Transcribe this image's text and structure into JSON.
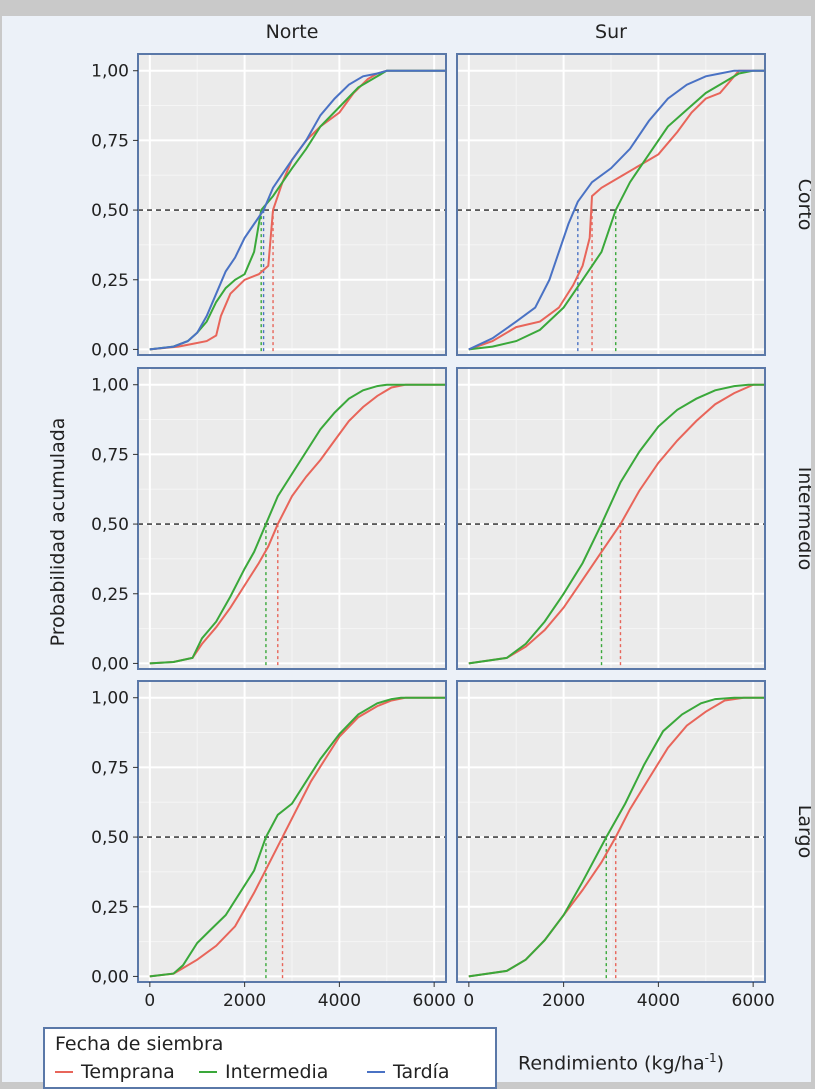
{
  "chart_data": {
    "type": "line",
    "ylabel": "Probabilidad acumulada",
    "xlabel": "Rendimiento (kg/ha",
    "xlabel_sup": "-1",
    "xlabel_close": ")",
    "x_ticks": [
      0,
      2000,
      4000,
      6000
    ],
    "y_ticks": [
      0,
      0.25,
      0.5,
      0.75,
      1
    ],
    "y_tick_labels": [
      "0,00",
      "0,25",
      "0,50",
      "0,75",
      "1,00"
    ],
    "xlim": [
      -250,
      6250
    ],
    "ylim": [
      -0.02,
      1.06
    ],
    "columns": [
      "Norte",
      "Sur"
    ],
    "rows": [
      "Corto",
      "Intermedio",
      "Largo"
    ],
    "reference_line": 0.5,
    "legend": {
      "title": "Fecha de siembra",
      "entries": [
        {
          "label": "Temprana",
          "color": "#e8655a"
        },
        {
          "label": "Intermedia",
          "color": "#3aa83a"
        },
        {
          "label": "Tardía",
          "color": "#4a72c4"
        }
      ]
    },
    "panels": [
      {
        "row": "Corto",
        "col": "Norte",
        "series": [
          {
            "color": "#e8655a",
            "median": 2600,
            "x": [
              0,
              600,
              900,
              1200,
              1400,
              1500,
              1700,
              2000,
              2300,
              2500,
              2600,
              2800,
              3000,
              3300,
              3600,
              4000,
              4300,
              4600,
              4800,
              5000,
              6250
            ],
            "y": [
              0,
              0.01,
              0.02,
              0.03,
              0.05,
              0.12,
              0.2,
              0.25,
              0.27,
              0.3,
              0.5,
              0.6,
              0.68,
              0.75,
              0.8,
              0.85,
              0.92,
              0.97,
              0.99,
              1,
              1
            ]
          },
          {
            "color": "#3aa83a",
            "median": 2350,
            "x": [
              0,
              500,
              800,
              1000,
              1200,
              1400,
              1600,
              1800,
              2000,
              2200,
              2350,
              2600,
              2800,
              3000,
              3300,
              3600,
              4000,
              4400,
              4800,
              5000,
              6250
            ],
            "y": [
              0,
              0.01,
              0.03,
              0.06,
              0.1,
              0.17,
              0.22,
              0.25,
              0.27,
              0.35,
              0.5,
              0.55,
              0.6,
              0.65,
              0.72,
              0.8,
              0.87,
              0.94,
              0.98,
              1,
              1
            ]
          },
          {
            "color": "#4a72c4",
            "median": 2400,
            "x": [
              0,
              500,
              800,
              1000,
              1200,
              1400,
              1600,
              1800,
              2000,
              2200,
              2400,
              2600,
              2800,
              3000,
              3300,
              3600,
              3900,
              4200,
              4500,
              4800,
              5000,
              6250
            ],
            "y": [
              0,
              0.01,
              0.03,
              0.06,
              0.12,
              0.2,
              0.28,
              0.33,
              0.4,
              0.45,
              0.5,
              0.58,
              0.63,
              0.68,
              0.75,
              0.84,
              0.9,
              0.95,
              0.98,
              0.99,
              1,
              1
            ]
          }
        ]
      },
      {
        "row": "Corto",
        "col": "Sur",
        "series": [
          {
            "color": "#e8655a",
            "median": 2600,
            "x": [
              0,
              500,
              1000,
              1500,
              1900,
              2200,
              2400,
              2550,
              2600,
              2800,
              3200,
              3600,
              4000,
              4400,
              4700,
              5000,
              5300,
              5500,
              5700,
              6250
            ],
            "y": [
              0,
              0.03,
              0.08,
              0.1,
              0.15,
              0.23,
              0.3,
              0.4,
              0.55,
              0.58,
              0.62,
              0.66,
              0.7,
              0.78,
              0.85,
              0.9,
              0.92,
              0.96,
              1,
              1
            ]
          },
          {
            "color": "#3aa83a",
            "median": 3100,
            "x": [
              0,
              500,
              1000,
              1500,
              2000,
              2400,
              2800,
              3100,
              3400,
              3800,
              4200,
              4600,
              5000,
              5400,
              5700,
              6000,
              6250
            ],
            "y": [
              0,
              0.01,
              0.03,
              0.07,
              0.15,
              0.25,
              0.35,
              0.5,
              0.6,
              0.7,
              0.8,
              0.86,
              0.92,
              0.96,
              0.99,
              1,
              1
            ]
          },
          {
            "color": "#4a72c4",
            "median": 2300,
            "x": [
              0,
              500,
              1000,
              1400,
              1700,
              1900,
              2100,
              2300,
              2600,
              3000,
              3400,
              3800,
              4200,
              4600,
              5000,
              5300,
              5600,
              6250
            ],
            "y": [
              0,
              0.04,
              0.1,
              0.15,
              0.25,
              0.35,
              0.45,
              0.53,
              0.6,
              0.65,
              0.72,
              0.82,
              0.9,
              0.95,
              0.98,
              0.99,
              1,
              1
            ]
          }
        ]
      },
      {
        "row": "Intermedio",
        "col": "Norte",
        "series": [
          {
            "color": "#e8655a",
            "median": 2700,
            "x": [
              0,
              500,
              900,
              1100,
              1400,
              1700,
              2000,
              2300,
              2500,
              2700,
              3000,
              3300,
              3600,
              3900,
              4200,
              4500,
              4800,
              5100,
              5400,
              6250
            ],
            "y": [
              0,
              0.005,
              0.02,
              0.07,
              0.13,
              0.2,
              0.28,
              0.36,
              0.42,
              0.5,
              0.6,
              0.67,
              0.73,
              0.8,
              0.87,
              0.92,
              0.96,
              0.99,
              1,
              1
            ]
          },
          {
            "color": "#3aa83a",
            "median": 2450,
            "x": [
              0,
              500,
              900,
              1100,
              1400,
              1700,
              2000,
              2200,
              2450,
              2700,
              3000,
              3300,
              3600,
              3900,
              4200,
              4500,
              4800,
              5000,
              6250
            ],
            "y": [
              0,
              0.005,
              0.02,
              0.09,
              0.15,
              0.24,
              0.34,
              0.4,
              0.5,
              0.6,
              0.68,
              0.76,
              0.84,
              0.9,
              0.95,
              0.98,
              0.995,
              1,
              1
            ]
          }
        ]
      },
      {
        "row": "Intermedio",
        "col": "Sur",
        "series": [
          {
            "color": "#e8655a",
            "median": 3200,
            "x": [
              0,
              800,
              1200,
              1600,
              2000,
              2400,
              2800,
              3200,
              3600,
              4000,
              4400,
              4800,
              5200,
              5600,
              6000,
              6250
            ],
            "y": [
              0,
              0.02,
              0.06,
              0.12,
              0.2,
              0.3,
              0.4,
              0.5,
              0.62,
              0.72,
              0.8,
              0.87,
              0.93,
              0.97,
              1,
              1
            ]
          },
          {
            "color": "#3aa83a",
            "median": 2800,
            "x": [
              0,
              800,
              1200,
              1600,
              2000,
              2400,
              2800,
              3200,
              3600,
              4000,
              4400,
              4800,
              5200,
              5600,
              5900,
              6250
            ],
            "y": [
              0,
              0.02,
              0.07,
              0.15,
              0.25,
              0.36,
              0.5,
              0.65,
              0.76,
              0.85,
              0.91,
              0.95,
              0.98,
              0.995,
              1,
              1
            ]
          }
        ]
      },
      {
        "row": "Largo",
        "col": "Norte",
        "series": [
          {
            "color": "#e8655a",
            "median": 2800,
            "x": [
              0,
              500,
              700,
              1000,
              1400,
              1800,
              2200,
              2500,
              2800,
              3100,
              3400,
              3700,
              4000,
              4400,
              4800,
              5100,
              5400,
              6250
            ],
            "y": [
              0,
              0.01,
              0.03,
              0.06,
              0.11,
              0.18,
              0.3,
              0.4,
              0.5,
              0.6,
              0.7,
              0.78,
              0.86,
              0.93,
              0.97,
              0.99,
              1,
              1
            ]
          },
          {
            "color": "#3aa83a",
            "median": 2450,
            "x": [
              0,
              500,
              700,
              1000,
              1300,
              1600,
              1900,
              2200,
              2450,
              2700,
              3000,
              3300,
              3600,
              4000,
              4400,
              4800,
              5100,
              5300,
              6250
            ],
            "y": [
              0,
              0.01,
              0.04,
              0.12,
              0.17,
              0.22,
              0.3,
              0.38,
              0.5,
              0.58,
              0.62,
              0.7,
              0.78,
              0.87,
              0.94,
              0.98,
              0.995,
              1,
              1
            ]
          }
        ]
      },
      {
        "row": "Largo",
        "col": "Sur",
        "series": [
          {
            "color": "#e8655a",
            "median": 3100,
            "x": [
              0,
              800,
              1200,
              1600,
              2000,
              2400,
              2800,
              3100,
              3400,
              3800,
              4200,
              4600,
              5000,
              5400,
              5800,
              6250
            ],
            "y": [
              0,
              0.02,
              0.06,
              0.13,
              0.22,
              0.31,
              0.41,
              0.5,
              0.6,
              0.71,
              0.82,
              0.9,
              0.95,
              0.99,
              1,
              1
            ]
          },
          {
            "color": "#3aa83a",
            "median": 2900,
            "x": [
              0,
              800,
              1200,
              1600,
              2000,
              2400,
              2900,
              3300,
              3700,
              4100,
              4500,
              4900,
              5200,
              5600,
              6250
            ],
            "y": [
              0,
              0.02,
              0.06,
              0.13,
              0.22,
              0.34,
              0.5,
              0.62,
              0.76,
              0.88,
              0.94,
              0.98,
              0.995,
              1,
              1
            ]
          }
        ]
      }
    ]
  }
}
